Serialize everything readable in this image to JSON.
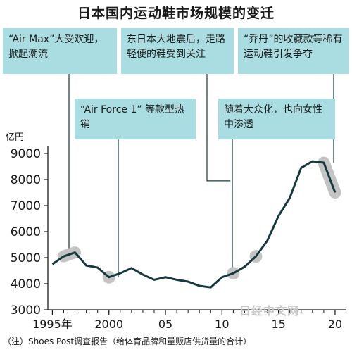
{
  "title": "日本国内运动鞋市场规模的变迁",
  "y_unit": "亿円",
  "callouts": [
    {
      "text": "“Air Max”大受欢迎，掀起潮流"
    },
    {
      "text": "东日本大地震后，走路轻便的鞋受到关注"
    },
    {
      "text": "“乔丹”的收藏款等稀有运动鞋引发争夺"
    },
    {
      "text": "“Air Force 1” 等款型热销"
    },
    {
      "text": "随着大众化，也向女性中渗透"
    }
  ],
  "footnote": "（注）Shoes Post调查报告（给体育品牌和量贩店供货量的合计）",
  "watermark": "日经中文网",
  "colors": {
    "line": "#16383f",
    "callout": "#a9dde2",
    "highlight": "#c4c4c4"
  },
  "chart_data": {
    "type": "line",
    "title": "日本国内运动鞋市场规模的变迁",
    "ylabel": "亿円",
    "x": [
      1995,
      1996,
      1997,
      1998,
      1999,
      2000,
      2001,
      2002,
      2003,
      2004,
      2005,
      2006,
      2007,
      2008,
      2009,
      2010,
      2011,
      2012,
      2013,
      2014,
      2015,
      2016,
      2017,
      2018,
      2019,
      2020
    ],
    "values": [
      4750,
      5050,
      5200,
      4700,
      4620,
      4250,
      4400,
      4600,
      4350,
      4150,
      4250,
      4150,
      4080,
      3920,
      3860,
      4250,
      4400,
      4650,
      5050,
      5650,
      6600,
      7300,
      8450,
      8700,
      8650,
      7500
    ],
    "xtick_labels": [
      {
        "x": 1995,
        "label": "1995年"
      },
      {
        "x": 2000,
        "label": "2000"
      },
      {
        "x": 2005,
        "label": "05"
      },
      {
        "x": 2010,
        "label": "10"
      },
      {
        "x": 2015,
        "label": "15"
      },
      {
        "x": 2020,
        "label": "20"
      }
    ],
    "yticks": [
      3000,
      4000,
      5000,
      6000,
      7000,
      8000,
      9000
    ],
    "ylim": [
      3000,
      9000
    ],
    "highlights": [
      {
        "x_start": 1996,
        "x_end": 1997
      },
      {
        "x_start": 2000,
        "x_end": 2000
      },
      {
        "x_start": 2011,
        "x_end": 2011
      },
      {
        "x_start": 2013,
        "x_end": 2013
      },
      {
        "x_start": 2019,
        "x_end": 2020
      }
    ],
    "grid": false,
    "legend": "none"
  }
}
